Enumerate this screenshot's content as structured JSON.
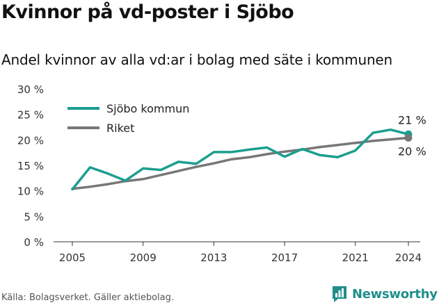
{
  "title": "Kvinnor på vd-poster i Sjöbo",
  "subtitle": "Andel kvinnor av alla vd:ar i bolag med säte i kommunen",
  "source": "Källa: Bolagsverket. Gäller aktiebolag.",
  "brand": "Newsworthy",
  "icons": {
    "logo": "newsworthy-bar-chart-icon"
  },
  "chart_data": {
    "type": "line",
    "x": [
      2005,
      2006,
      2007,
      2008,
      2009,
      2010,
      2011,
      2012,
      2013,
      2014,
      2015,
      2016,
      2017,
      2018,
      2019,
      2020,
      2021,
      2022,
      2023,
      2024
    ],
    "series": [
      {
        "name": "Sjöbo kommun",
        "color": "#1a9e8f",
        "values": [
          10.3,
          14.6,
          13.4,
          12.0,
          14.4,
          14.1,
          15.7,
          15.3,
          17.6,
          17.6,
          18.1,
          18.5,
          16.7,
          18.2,
          17.0,
          16.6,
          17.9,
          21.4,
          22.0,
          21.1
        ],
        "end_label": "21 %"
      },
      {
        "name": "Riket",
        "color": "#777777",
        "values": [
          10.4,
          10.8,
          11.3,
          11.9,
          12.3,
          13.1,
          13.9,
          14.7,
          15.4,
          16.2,
          16.6,
          17.2,
          17.7,
          18.1,
          18.6,
          19.0,
          19.4,
          19.8,
          20.1,
          20.4
        ],
        "end_label": "20 %"
      }
    ],
    "xticks": [
      2005,
      2009,
      2013,
      2017,
      2021,
      2024
    ],
    "yticks": [
      0,
      5,
      10,
      15,
      20,
      25,
      30
    ],
    "ytick_labels": [
      "0 %",
      "5 %",
      "10 %",
      "15 %",
      "20 %",
      "25 %",
      "30 %"
    ],
    "xlim": [
      2005,
      2024
    ],
    "ylim": [
      0,
      30
    ],
    "grid": false,
    "legend": "top-left"
  }
}
